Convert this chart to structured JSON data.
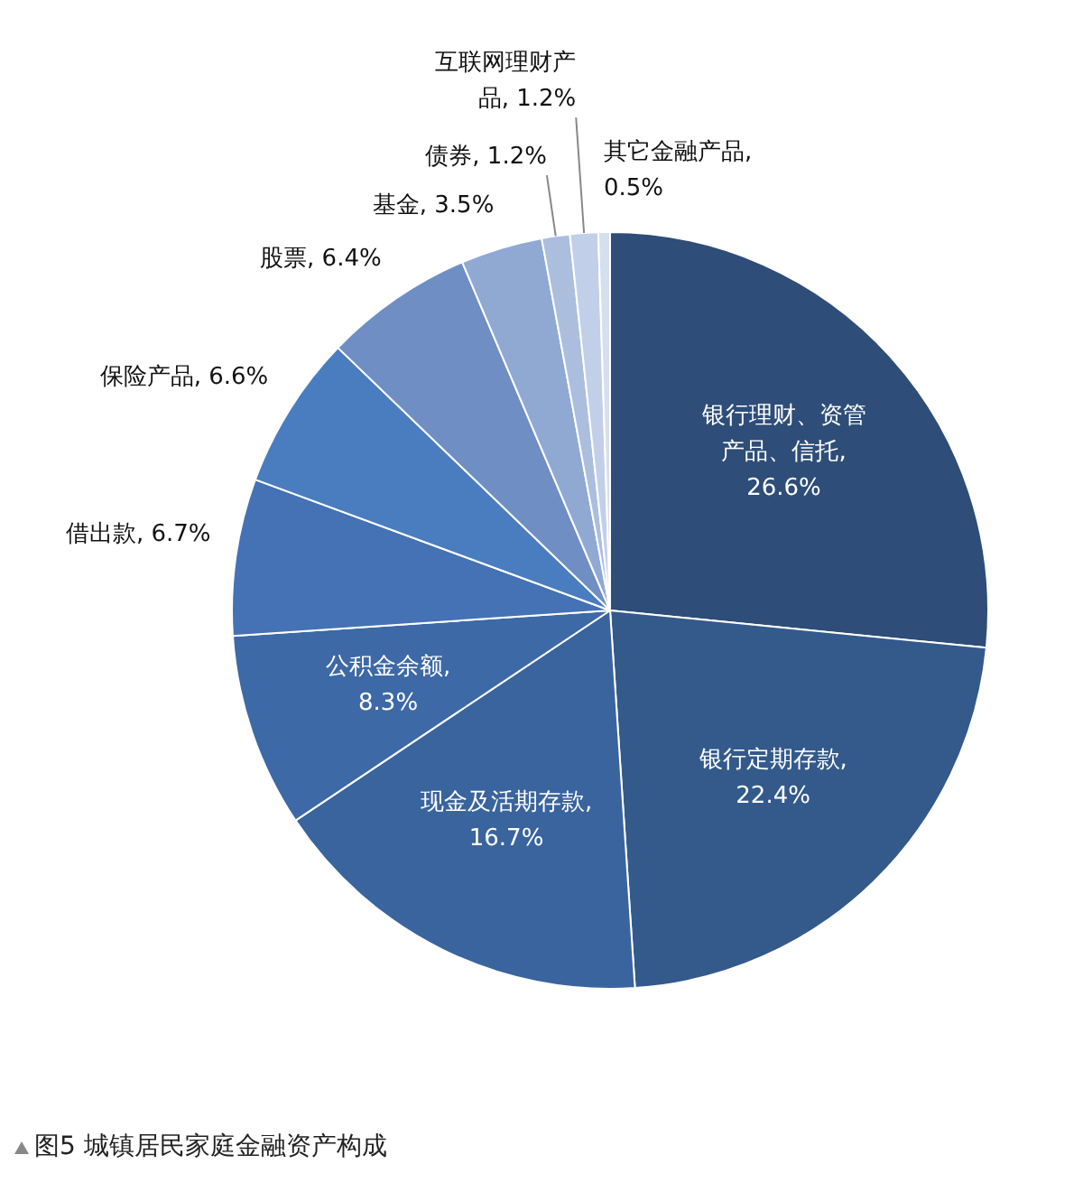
{
  "chart_data": {
    "type": "pie",
    "title": "图5 城镇居民家庭金融资产构成",
    "categories": [
      "银行理财、资管产品、信托",
      "银行定期存款",
      "现金及活期存款",
      "公积金余额",
      "借出款",
      "保险产品",
      "股票",
      "基金",
      "债券",
      "互联网理财产品",
      "其它金融产品"
    ],
    "values": [
      26.6,
      22.4,
      16.7,
      8.3,
      6.7,
      6.6,
      6.4,
      3.5,
      1.2,
      1.2,
      0.5
    ],
    "colors": [
      "#2e4d78",
      "#335a8b",
      "#3a649d",
      "#3d69a6",
      "#4472b4",
      "#4a7dc0",
      "#6f8fc4",
      "#90a9d3",
      "#acbede",
      "#c2cfe8",
      "#d6dff0"
    ],
    "value_labels": [
      ", 26.6%",
      ", 22.4%",
      ", 16.7%",
      ", 8.3%",
      ", 6.7%",
      ", 6.6%",
      ", 6.4%",
      ", 3.5%",
      ", 1.2%",
      ", 1.2%",
      ", 0.5%"
    ],
    "legend": false
  }
}
